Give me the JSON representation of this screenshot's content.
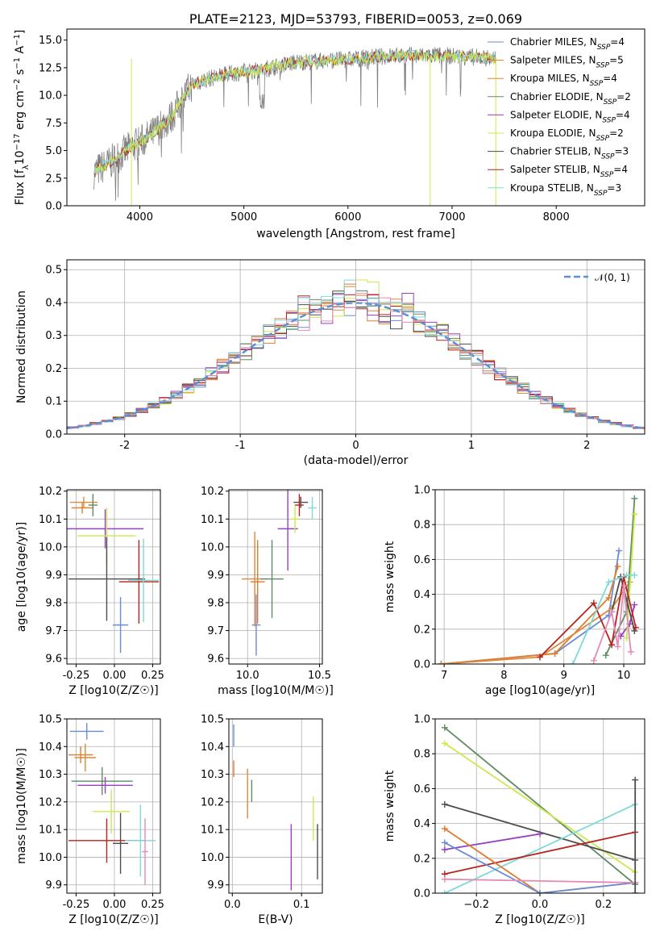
{
  "chart_data": [
    {
      "id": "spectrum",
      "type": "line",
      "title": "PLATE=2123, MJD=53793, FIBERID=0053, z=0.069",
      "xlabel": "wavelength [Angstrom, rest frame]",
      "ylabel_parts": [
        "Flux [f",
        "λ",
        "10",
        "−17",
        " erg cm",
        "−2",
        " s",
        "−1",
        " A",
        "−1",
        "]"
      ],
      "xlim": [
        3300,
        8850
      ],
      "ylim": [
        0,
        16
      ],
      "xticks": [
        4000,
        5000,
        6000,
        7000,
        8000
      ],
      "yticks": [
        0.0,
        2.5,
        5.0,
        7.5,
        10.0,
        12.5,
        15.0
      ],
      "continuum_model": {
        "x": [
          3550,
          3700,
          3900,
          4100,
          4300,
          4500,
          4700,
          4900,
          5100,
          5300,
          5500,
          5700,
          5900,
          6100,
          6300,
          6500,
          6700,
          6900,
          7100,
          7300,
          7500
        ],
        "y": [
          3.0,
          3.8,
          5.2,
          6.3,
          8.0,
          11.0,
          11.6,
          12.0,
          12.2,
          12.6,
          13.0,
          13.1,
          13.2,
          13.3,
          13.5,
          13.6,
          13.6,
          13.6,
          13.5,
          13.4,
          13.3
        ]
      },
      "legend": [
        "Chabrier MILES, N_SSP=4",
        "Salpeter MILES, N_SSP=5",
        "Kroupa MILES, N_SSP=4",
        "Chabrier ELODIE, N_SSP=2",
        "Salpeter ELODIE, N_SSP=4",
        "Kroupa ELODIE, N_SSP=2",
        "Chabrier STELIB, N_SSP=3",
        "Salpeter STELIB, N_SSP=4",
        "Kroupa STELIB, N_SSP=3"
      ],
      "legend_placement": "upper right",
      "grid": false
    },
    {
      "id": "residuals",
      "type": "line",
      "xlabel": "(data-model)/error",
      "ylabel": "Normed distribution",
      "xlim": [
        -2.5,
        2.5
      ],
      "ylim": [
        0,
        0.53
      ],
      "xticks": [
        -2,
        -1,
        0,
        1,
        2
      ],
      "yticks": [
        0.0,
        0.1,
        0.2,
        0.3,
        0.4,
        0.5
      ],
      "gaussian_label": "𝒩(0, 1)",
      "legend_placement": "upper right",
      "grid": true
    },
    {
      "id": "age_vs_Z",
      "type": "scatter",
      "xlabel": "Z [log10(Z/Z☉)]",
      "ylabel": "age [log10(age/yr)]",
      "xlim": [
        -0.31,
        0.3
      ],
      "ylim": [
        9.58,
        10.205
      ],
      "xticks": [
        "-0.25",
        "0.00",
        "0.25"
      ],
      "yticks": [
        "9.6",
        "9.7",
        "9.8",
        "9.9",
        "10.0",
        "10.1",
        "10.2"
      ],
      "grid": true,
      "points": [
        {
          "x": 0.04,
          "y": 9.72,
          "xerr": 0.05,
          "yerr": 0.1
        },
        {
          "x": -0.21,
          "y": 10.14,
          "xerr": 0.07,
          "yerr": 0.02
        },
        {
          "x": -0.2,
          "y": 10.16,
          "xerr": 0.09,
          "yerr": 0.02
        },
        {
          "x": -0.14,
          "y": 10.15,
          "xerr": 0.03,
          "yerr": 0.04
        },
        {
          "x": -0.06,
          "y": 10.065,
          "xerr": 0.25,
          "yerr": 0.07
        },
        {
          "x": -0.05,
          "y": 10.04,
          "xerr": 0.19,
          "yerr": 0.1
        },
        {
          "x": -0.05,
          "y": 9.885,
          "xerr": 0.25,
          "yerr": 0.15
        },
        {
          "x": 0.16,
          "y": 9.875,
          "xerr": 0.13,
          "yerr": 0.15
        },
        {
          "x": 0.19,
          "y": 9.88,
          "xerr": 0.1,
          "yerr": 0.15
        }
      ]
    },
    {
      "id": "age_vs_mass",
      "type": "scatter",
      "xlabel": "mass [log10(M/M☉)]",
      "ylabel": "",
      "xlim": [
        9.87,
        10.52
      ],
      "ylim": [
        9.58,
        10.205
      ],
      "xticks": [
        "10.0",
        "10.5"
      ],
      "yticks": [
        "9.6",
        "9.7",
        "9.8",
        "9.9",
        "10.0",
        "10.1",
        "10.2"
      ],
      "grid": true,
      "points": [
        {
          "x": 10.06,
          "y": 9.72,
          "xerr": 0.03,
          "yerr": 0.11
        },
        {
          "x": 10.07,
          "y": 9.875,
          "xerr": 0.05,
          "yerr": 0.15
        },
        {
          "x": 10.05,
          "y": 9.885,
          "xerr": 0.09,
          "yerr": 0.17
        },
        {
          "x": 10.17,
          "y": 9.885,
          "xerr": 0.08,
          "yerr": 0.14
        },
        {
          "x": 10.28,
          "y": 10.065,
          "xerr": 0.07,
          "yerr": 0.15
        },
        {
          "x": 10.33,
          "y": 10.1,
          "xerr": 0.03,
          "yerr": 0.05
        },
        {
          "x": 10.37,
          "y": 10.16,
          "xerr": 0.05,
          "yerr": 0.02
        },
        {
          "x": 10.36,
          "y": 10.15,
          "xerr": 0.03,
          "yerr": 0.04
        },
        {
          "x": 10.45,
          "y": 10.14,
          "xerr": 0.03,
          "yerr": 0.04
        }
      ]
    },
    {
      "id": "massweight_vs_age",
      "type": "line",
      "xlabel": "age [log10(age/yr)]",
      "ylabel": "mass weight",
      "xlim": [
        6.85,
        10.35
      ],
      "ylim": [
        0,
        1.0
      ],
      "xticks": [
        "7",
        "8",
        "9",
        "10"
      ],
      "yticks": [
        "0.0",
        "0.2",
        "0.4",
        "0.6",
        "0.8",
        "1.0"
      ],
      "grid": true,
      "series": [
        {
          "color": "#6a8bd6",
          "x": [
            6.95,
            8.85,
            9.75,
            9.92
          ],
          "y": [
            0.0,
            0.06,
            0.28,
            0.65
          ]
        },
        {
          "color": "#e07b2e",
          "x": [
            6.95,
            8.85,
            9.75,
            9.9
          ],
          "y": [
            0.0,
            0.06,
            0.38,
            0.56
          ]
        },
        {
          "color": "#d98a3a",
          "x": [
            6.95,
            8.6,
            9.8,
            10.1
          ],
          "y": [
            0.0,
            0.04,
            0.32,
            0.47
          ]
        },
        {
          "color": "#5e8c63",
          "x": [
            9.7,
            10.05,
            10.18
          ],
          "y": [
            0.05,
            0.3,
            0.95
          ]
        },
        {
          "color": "#9a3fbf",
          "x": [
            9.95,
            10.1,
            10.18
          ],
          "y": [
            0.16,
            0.23,
            0.34
          ]
        },
        {
          "color": "#cde84a",
          "x": [
            10.05,
            10.18
          ],
          "y": [
            0.15,
            0.86
          ]
        },
        {
          "color": "#4c4c4c",
          "x": [
            9.8,
            9.95,
            10.18
          ],
          "y": [
            0.3,
            0.5,
            0.19
          ]
        },
        {
          "color": "#b8231f",
          "x": [
            8.6,
            9.5,
            9.8,
            10.0,
            10.2
          ],
          "y": [
            0.04,
            0.35,
            0.11,
            0.5,
            0.21
          ]
        },
        {
          "color": "#7fd9d9",
          "x": [
            9.15,
            9.75,
            10.05,
            10.18
          ],
          "y": [
            0.0,
            0.47,
            0.51,
            0.51
          ]
        },
        {
          "color": "#e38bb5",
          "x": [
            9.5,
            9.8,
            9.9,
            10.0,
            10.12
          ],
          "y": [
            0.02,
            0.3,
            0.1,
            0.45,
            0.07
          ]
        }
      ]
    },
    {
      "id": "mass_vs_Z",
      "type": "scatter",
      "xlabel": "Z [log10(Z/Z☉)]",
      "ylabel": "mass [log10(M/M☉)]",
      "xlim": [
        -0.31,
        0.3
      ],
      "ylim": [
        9.87,
        10.5
      ],
      "xticks": [
        "-0.25",
        "0.00",
        "0.25"
      ],
      "yticks": [
        "9.9",
        "10.0",
        "10.1",
        "10.2",
        "10.3",
        "10.4",
        "10.5"
      ],
      "grid": true,
      "points": [
        {
          "x": -0.18,
          "y": 10.455,
          "xerr": 0.11,
          "yerr": 0.03
        },
        {
          "x": -0.22,
          "y": 10.37,
          "xerr": 0.08,
          "yerr": 0.03
        },
        {
          "x": -0.19,
          "y": 10.36,
          "xerr": 0.07,
          "yerr": 0.05
        },
        {
          "x": -0.08,
          "y": 10.275,
          "xerr": 0.2,
          "yerr": 0.05
        },
        {
          "x": -0.06,
          "y": 10.26,
          "xerr": 0.18,
          "yerr": 0.03
        },
        {
          "x": -0.02,
          "y": 10.165,
          "xerr": 0.12,
          "yerr": 0.08
        },
        {
          "x": 0.04,
          "y": 10.05,
          "xerr": 0.05,
          "yerr": 0.11
        },
        {
          "x": -0.05,
          "y": 10.06,
          "xerr": 0.25,
          "yerr": 0.08
        },
        {
          "x": 0.17,
          "y": 10.06,
          "xerr": 0.1,
          "yerr": 0.13
        },
        {
          "x": 0.2,
          "y": 10.02,
          "xerr": 0.02,
          "yerr": 0.12
        }
      ]
    },
    {
      "id": "mass_vs_EBV",
      "type": "scatter",
      "xlabel": "E(B-V)",
      "ylabel": "",
      "xlim": [
        -0.005,
        0.13
      ],
      "ylim": [
        9.87,
        10.5
      ],
      "xticks": [
        "0.0",
        "0.1"
      ],
      "yticks": [
        "9.9",
        "10.0",
        "10.1",
        "10.2",
        "10.3",
        "10.4",
        "10.5"
      ],
      "grid": true,
      "points": [
        {
          "x": 0.002,
          "y": 10.44,
          "xerr": 0.0,
          "yerr": 0.04
        },
        {
          "x": 0.002,
          "y": 10.32,
          "xerr": 0.0,
          "yerr": 0.03
        },
        {
          "x": 0.022,
          "y": 10.23,
          "xerr": 0.0,
          "yerr": 0.09
        },
        {
          "x": 0.028,
          "y": 10.24,
          "xerr": 0.0,
          "yerr": 0.04
        },
        {
          "x": 0.085,
          "y": 10.0,
          "xerr": 0.0,
          "yerr": 0.12
        },
        {
          "x": 0.117,
          "y": 10.14,
          "xerr": 0.0,
          "yerr": 0.08
        },
        {
          "x": 0.123,
          "y": 10.02,
          "xerr": 0.0,
          "yerr": 0.1
        }
      ]
    },
    {
      "id": "massweight_vs_Z",
      "type": "line",
      "xlabel": "Z [log10(Z/Z☉)]",
      "ylabel": "mass weight",
      "xlim": [
        -0.33,
        0.33
      ],
      "ylim": [
        0,
        1.0
      ],
      "xticks": [
        "−0.2",
        "0.0",
        "0.2"
      ],
      "yticks": [
        "0.0",
        "0.2",
        "0.4",
        "0.6",
        "0.8",
        "1.0"
      ],
      "grid": true,
      "series": [
        {
          "color": "#5e8c63",
          "x": [
            -0.3,
            0.3
          ],
          "y": [
            0.95,
            0.05
          ]
        },
        {
          "color": "#cde84a",
          "x": [
            -0.3,
            0.3
          ],
          "y": [
            0.86,
            0.12
          ]
        },
        {
          "color": "#4c4c4c",
          "x": [
            -0.3,
            0.3
          ],
          "y": [
            0.51,
            0.19
          ]
        },
        {
          "color": "#7fd9d9",
          "x": [
            -0.3,
            0.3
          ],
          "y": [
            0.0,
            0.51
          ]
        },
        {
          "color": "#b8231f",
          "x": [
            -0.3,
            0.3
          ],
          "y": [
            0.11,
            0.35
          ]
        },
        {
          "color": "#9a3fbf",
          "x": [
            -0.3,
            0.0
          ],
          "y": [
            0.25,
            0.34
          ]
        },
        {
          "color": "#e07b2e",
          "x": [
            -0.3,
            0.0,
            0.3
          ],
          "y": [
            0.37,
            0.0,
            0.06
          ]
        },
        {
          "color": "#6a8bd6",
          "x": [
            -0.3,
            0.0,
            0.3
          ],
          "y": [
            0.29,
            0.0,
            0.06
          ]
        },
        {
          "color": "#e38bb5",
          "x": [
            -0.3,
            0.3
          ],
          "y": [
            0.08,
            0.06
          ]
        },
        {
          "color": "#4c4c4c",
          "x": [
            0.3,
            0.3
          ],
          "y": [
            0.0,
            0.65
          ]
        }
      ]
    }
  ],
  "colors": [
    "#6a8bd6",
    "#e07b2e",
    "#d98a3a",
    "#5e8c63",
    "#9a3fbf",
    "#cde84a",
    "#4c4c4c",
    "#b8231f",
    "#7fd9d9",
    "#e38bb5"
  ],
  "data_color": "#808080",
  "gaussian_color": "#5b8fd6"
}
